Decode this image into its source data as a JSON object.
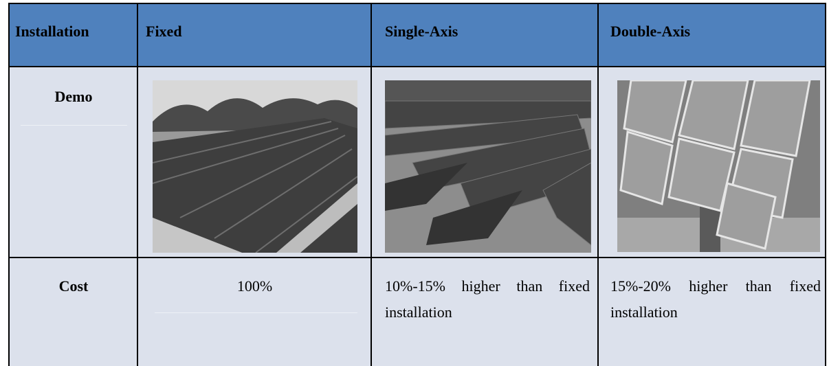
{
  "table": {
    "header": [
      "Installation",
      "Fixed",
      "Single-Axis",
      "Double-Axis"
    ],
    "rows": [
      [
        "Demo"
      ],
      [
        "Cost",
        "100%",
        "10%-15% higher than fixed installation",
        "15%-20% higher than fixed installation"
      ]
    ]
  }
}
